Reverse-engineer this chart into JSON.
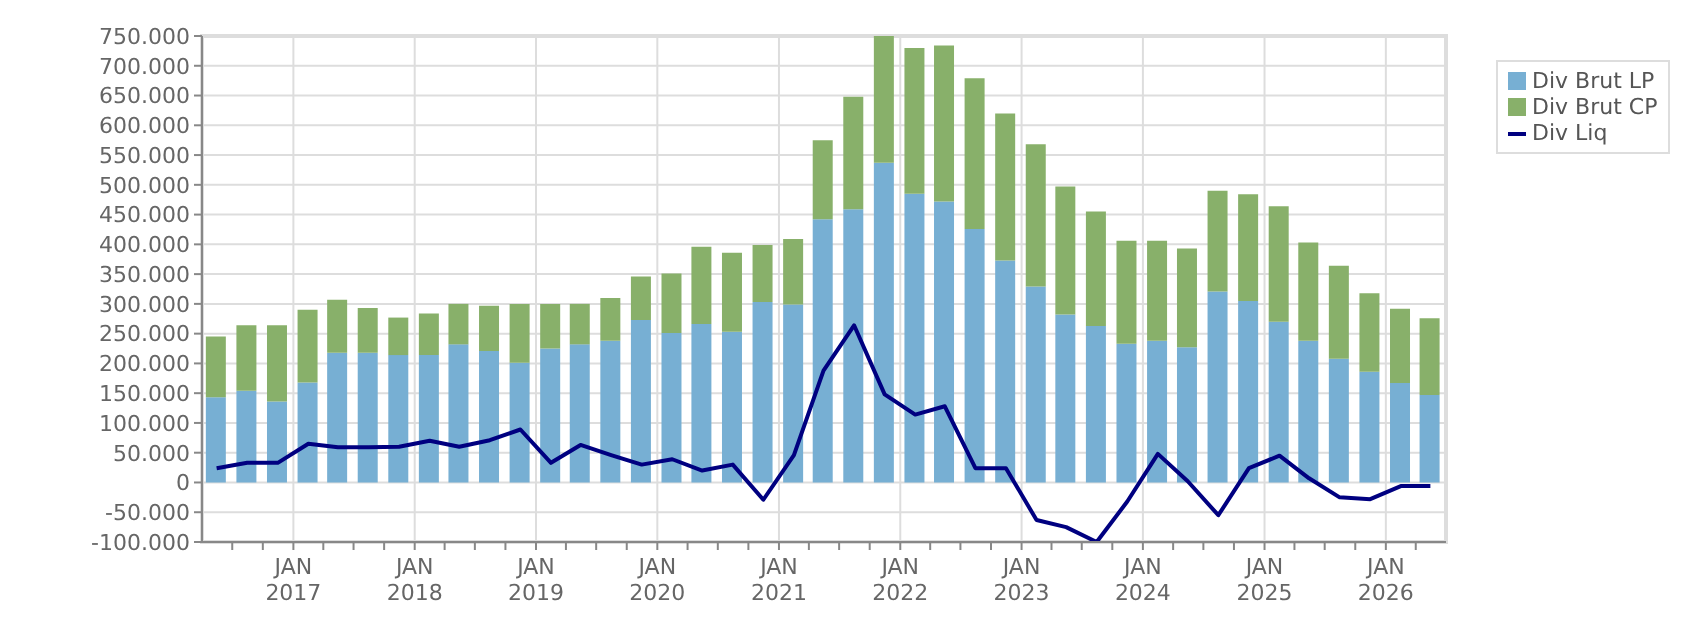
{
  "chart_data": {
    "type": "bar",
    "stacked": true,
    "x": [
      "2016-05-15",
      "2016-08-15",
      "2016-11-15",
      "2017-02-15",
      "2017-05-15",
      "2017-08-15",
      "2017-11-15",
      "2018-02-15",
      "2018-05-15",
      "2018-08-15",
      "2018-11-15",
      "2019-02-15",
      "2019-05-15",
      "2019-08-15",
      "2019-11-15",
      "2020-02-15",
      "2020-05-15",
      "2020-08-15",
      "2020-11-15",
      "2021-02-15",
      "2021-05-15",
      "2021-08-15",
      "2021-11-15",
      "2022-02-15",
      "2022-05-15",
      "2022-08-15",
      "2022-11-15",
      "2023-02-15",
      "2023-05-15",
      "2023-08-15",
      "2023-11-15",
      "2024-02-15",
      "2024-05-15",
      "2024-08-15",
      "2024-11-15",
      "2025-02-15",
      "2025-05-15",
      "2025-08-15",
      "2025-11-15",
      "2026-02-15",
      "2026-05-15"
    ],
    "series": [
      {
        "name": "Div Brut LP",
        "color": "#77afd3",
        "values": [
          143000,
          154000,
          136000,
          168000,
          218000,
          218000,
          214000,
          214000,
          232000,
          221000,
          201000,
          225000,
          232000,
          238000,
          273000,
          251000,
          266000,
          253000,
          303000,
          299000,
          442000,
          459000,
          537000,
          485000,
          472000,
          426000,
          373000,
          329000,
          282000,
          263000,
          233000,
          238000,
          227000,
          321000,
          305000,
          270000,
          238000,
          208000,
          186000,
          167000,
          147000
        ]
      },
      {
        "name": "Div Brut CP",
        "color": "#88b06a",
        "values": [
          102000,
          110000,
          128000,
          122000,
          89000,
          75000,
          63000,
          70000,
          68000,
          76000,
          99000,
          75000,
          68000,
          72000,
          73000,
          100000,
          130000,
          133000,
          96000,
          110000,
          133000,
          189000,
          213000,
          245000,
          262000,
          253000,
          247000,
          239000,
          215000,
          192000,
          173000,
          168000,
          166000,
          169000,
          179000,
          194000,
          165000,
          156000,
          132000,
          125000,
          129000
        ]
      },
      {
        "name": "Div Liq",
        "type": "line",
        "color": "#000080",
        "values": [
          24000,
          33000,
          33000,
          65000,
          59000,
          59000,
          60000,
          70000,
          60000,
          71000,
          89000,
          33000,
          63000,
          46000,
          30000,
          39000,
          20000,
          30000,
          -29000,
          46000,
          188000,
          264000,
          148000,
          114000,
          128000,
          24000,
          24000,
          -63000,
          -75000,
          -100000,
          -32000,
          48000,
          2000,
          -55000,
          24000,
          45000,
          7000,
          -25000,
          -28000,
          -6000,
          -6000
        ]
      }
    ],
    "xlim": [
      "2016-04-01",
      "2026-07-01"
    ],
    "xticks": [
      {
        "value": "2016-07-01",
        "label": null
      },
      {
        "value": "2016-10-01",
        "label": null
      },
      {
        "value": "2017-01-01",
        "label": "JAN 2017"
      },
      {
        "value": "2017-04-01",
        "label": null
      },
      {
        "value": "2017-07-01",
        "label": null
      },
      {
        "value": "2017-10-01",
        "label": null
      },
      {
        "value": "2018-01-01",
        "label": "JAN 2018"
      },
      {
        "value": "2018-04-01",
        "label": null
      },
      {
        "value": "2018-07-01",
        "label": null
      },
      {
        "value": "2018-10-01",
        "label": null
      },
      {
        "value": "2019-01-01",
        "label": "JAN 2019"
      },
      {
        "value": "2019-04-01",
        "label": null
      },
      {
        "value": "2019-07-01",
        "label": null
      },
      {
        "value": "2019-10-01",
        "label": null
      },
      {
        "value": "2020-01-01",
        "label": "JAN 2020"
      },
      {
        "value": "2020-04-01",
        "label": null
      },
      {
        "value": "2020-07-01",
        "label": null
      },
      {
        "value": "2020-10-01",
        "label": null
      },
      {
        "value": "2021-01-01",
        "label": "JAN 2021"
      },
      {
        "value": "2021-04-01",
        "label": null
      },
      {
        "value": "2021-07-01",
        "label": null
      },
      {
        "value": "2021-10-01",
        "label": null
      },
      {
        "value": "2022-01-01",
        "label": "JAN 2022"
      },
      {
        "value": "2022-04-01",
        "label": null
      },
      {
        "value": "2022-07-01",
        "label": null
      },
      {
        "value": "2022-10-01",
        "label": null
      },
      {
        "value": "2023-01-01",
        "label": "JAN 2023"
      },
      {
        "value": "2023-04-01",
        "label": null
      },
      {
        "value": "2023-07-01",
        "label": null
      },
      {
        "value": "2023-10-01",
        "label": null
      },
      {
        "value": "2024-01-01",
        "label": "JAN 2024"
      },
      {
        "value": "2024-04-01",
        "label": null
      },
      {
        "value": "2024-07-01",
        "label": null
      },
      {
        "value": "2024-10-01",
        "label": null
      },
      {
        "value": "2025-01-01",
        "label": "JAN 2025"
      },
      {
        "value": "2025-04-01",
        "label": null
      },
      {
        "value": "2025-07-01",
        "label": null
      },
      {
        "value": "2025-10-01",
        "label": null
      },
      {
        "value": "2026-01-01",
        "label": "JAN 2026"
      },
      {
        "value": "2026-04-01",
        "label": null
      }
    ],
    "ylim": [
      -100000,
      750000
    ],
    "yticks": [
      {
        "value": -100000,
        "label": "-100.000"
      },
      {
        "value": -50000,
        "label": "-50.000"
      },
      0,
      {
        "value": 50000,
        "label": "50.000"
      },
      {
        "value": 100000,
        "label": "100.000"
      },
      {
        "value": 150000,
        "label": "150.000"
      },
      {
        "value": 200000,
        "label": "200.000"
      },
      {
        "value": 250000,
        "label": "250.000"
      },
      {
        "value": 300000,
        "label": "300.000"
      },
      {
        "value": 350000,
        "label": "350.000"
      },
      {
        "value": 400000,
        "label": "400.000"
      },
      {
        "value": 450000,
        "label": "450.000"
      },
      {
        "value": 500000,
        "label": "500.000"
      },
      {
        "value": 550000,
        "label": "550.000"
      },
      {
        "value": 600000,
        "label": "600.000"
      },
      {
        "value": 650000,
        "label": "650.000"
      },
      {
        "value": 700000,
        "label": "700.000"
      },
      {
        "value": 750000,
        "label": "750.000"
      }
    ],
    "grid": true,
    "legend": "top right",
    "marker": "none",
    "line_style": "solid"
  }
}
